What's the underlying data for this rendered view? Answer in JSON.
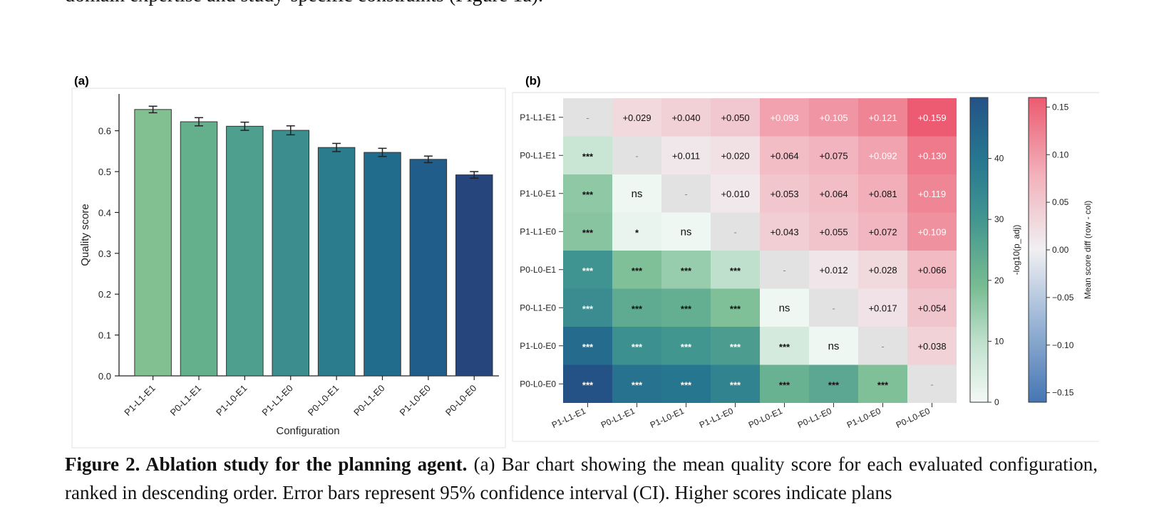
{
  "top_text": "domain expertise and study-specific constraints (Figure 1a).",
  "caption": {
    "title": "Figure 2. Ablation study for the planning agent.",
    "body": " (a) Bar chart showing the mean quality score for each evaluated configuration, ranked in descending order. Error bars represent 95% confidence interval (CI). Higher scores indicate plans"
  },
  "chart_data": [
    {
      "panel": "(a)",
      "type": "bar",
      "categories": [
        "P1-L1-E1",
        "P0-L1-E1",
        "P1-L0-E1",
        "P1-L1-E0",
        "P0-L0-E1",
        "P0-L1-E0",
        "P1-L0-E0",
        "P0-L0-E0"
      ],
      "values": [
        0.652,
        0.622,
        0.611,
        0.601,
        0.559,
        0.547,
        0.53,
        0.492
      ],
      "ci": [
        0.008,
        0.01,
        0.01,
        0.011,
        0.01,
        0.01,
        0.008,
        0.008
      ],
      "colors": [
        "#82c091",
        "#64b08c",
        "#4e9f8e",
        "#3c8d8e",
        "#2b7c8d",
        "#216c8c",
        "#215d8a",
        "#25457c"
      ],
      "xlabel": "Configuration",
      "ylabel": "Quality score",
      "ylim": [
        0,
        0.69
      ],
      "yticks": [
        "0.0",
        "0.1",
        "0.2",
        "0.3",
        "0.4",
        "0.5",
        "0.6"
      ]
    },
    {
      "panel": "(b)",
      "type": "heatmap",
      "labels": [
        "P1-L1-E1",
        "P0-L1-E1",
        "P1-L0-E1",
        "P1-L1-E0",
        "P0-L0-E1",
        "P0-L1-E0",
        "P1-L0-E0",
        "P0-L0-E0"
      ],
      "diff": [
        [
          null,
          0.029,
          0.04,
          0.05,
          0.093,
          0.105,
          0.121,
          0.159
        ],
        [
          null,
          null,
          0.011,
          0.02,
          0.064,
          0.075,
          0.092,
          0.13
        ],
        [
          null,
          null,
          null,
          0.01,
          0.053,
          0.064,
          0.081,
          0.119
        ],
        [
          null,
          null,
          null,
          null,
          0.043,
          0.055,
          0.072,
          0.109
        ],
        [
          null,
          null,
          null,
          null,
          null,
          0.012,
          0.028,
          0.066
        ],
        [
          null,
          null,
          null,
          null,
          null,
          null,
          0.017,
          0.054
        ],
        [
          null,
          null,
          null,
          null,
          null,
          null,
          null,
          0.038
        ],
        [
          null,
          null,
          null,
          null,
          null,
          null,
          null,
          null
        ]
      ],
      "sig": [
        [
          "-",
          "+0.029",
          "+0.040",
          "+0.050",
          "+0.093",
          "+0.105",
          "+0.121",
          "+0.159"
        ],
        [
          "***",
          "-",
          "+0.011",
          "+0.020",
          "+0.064",
          "+0.075",
          "+0.092",
          "+0.130"
        ],
        [
          "***",
          "ns",
          "-",
          "+0.010",
          "+0.053",
          "+0.064",
          "+0.081",
          "+0.119"
        ],
        [
          "***",
          "*",
          "ns",
          "-",
          "+0.043",
          "+0.055",
          "+0.072",
          "+0.109"
        ],
        [
          "***",
          "***",
          "***",
          "***",
          "-",
          "+0.012",
          "+0.028",
          "+0.066"
        ],
        [
          "***",
          "***",
          "***",
          "***",
          "ns",
          "-",
          "+0.017",
          "+0.054"
        ],
        [
          "***",
          "***",
          "***",
          "***",
          "***",
          "ns",
          "-",
          "+0.038"
        ],
        [
          "***",
          "***",
          "***",
          "***",
          "***",
          "***",
          "***",
          "-"
        ]
      ],
      "neglogp": [
        [
          null,
          null,
          null,
          null,
          null,
          null,
          null,
          null
        ],
        [
          8,
          null,
          null,
          null,
          null,
          null,
          null,
          null
        ],
        [
          16,
          1,
          null,
          null,
          null,
          null,
          null,
          null
        ],
        [
          17,
          2,
          1,
          null,
          null,
          null,
          null,
          null
        ],
        [
          31,
          18,
          15,
          10,
          null,
          null,
          null,
          null
        ],
        [
          33,
          24,
          23,
          18,
          1,
          null,
          null,
          null
        ],
        [
          43,
          32,
          30,
          28,
          6,
          1,
          null,
          null
        ],
        [
          50,
          41,
          40,
          36,
          22,
          25,
          18,
          null
        ]
      ],
      "green_scale": {
        "min": 0,
        "max": 50,
        "ticks": [
          "0",
          "10",
          "20",
          "30",
          "40"
        ],
        "label": "-log10(p_adj)"
      },
      "diverging_scale": {
        "min": -0.16,
        "max": 0.16,
        "ticks": [
          "0.15",
          "0.10",
          "0.05",
          "0.00",
          "-0.05",
          "-0.10",
          "-0.15"
        ],
        "label": "Mean score diff (row - col)"
      }
    }
  ]
}
